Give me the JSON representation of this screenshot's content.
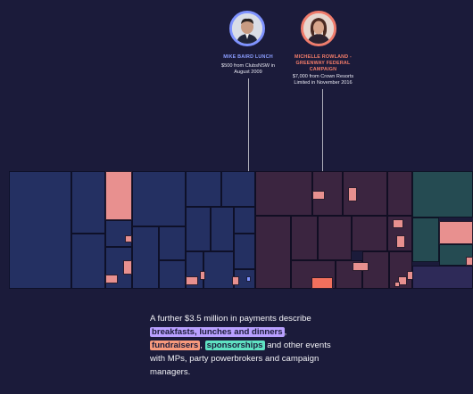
{
  "colors": {
    "background": "#1b1b3a",
    "breakfasts": "#b9a0ff",
    "fundraisers": "#f79a7c",
    "sponsorships": "#5fe2c2",
    "treemap_blue": "#243062",
    "treemap_maroon": "#3b2540",
    "treemap_teal": "#254b52",
    "highlight_pink": "#e8908f"
  },
  "callouts": [
    {
      "name": "MIKE BAIRD LUNCH",
      "description": "$500 from ClubsNSW in August 2009",
      "color": "#8a9dff"
    },
    {
      "name": "MICHELLE ROWLAND - GREENWAY FEDERAL CAMPAIGN",
      "description": "$7,000 from Crown Resorts Limited in November 2016",
      "color": "#f57d6a"
    }
  ],
  "caption": {
    "intro": "A further $3.5 million in payments describe",
    "breakfasts": "breakfasts, lunches and dinners",
    "sep1": ",",
    "fundraisers": "fundraisers",
    "sep2": ",",
    "sponsorships": "sponsorships",
    "outro": "and other events with MPs, party powerbrokers and campaign managers."
  }
}
